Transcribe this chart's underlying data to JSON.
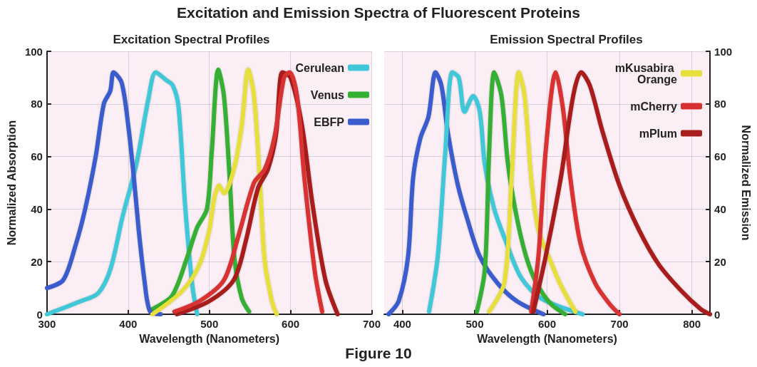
{
  "chart_data": [
    {
      "type": "other",
      "title": "Excitation and Emission Spectra of Fluorescent Proteins",
      "annotations": [
        "Figure 10"
      ]
    },
    {
      "type": "line",
      "title": "Excitation Spectral Profiles",
      "xlabel": "Wavelength (Nanometers)",
      "ylabel": "Normalized Absorption",
      "xlim": [
        300,
        700
      ],
      "xticks": [
        300,
        400,
        500,
        600,
        700
      ],
      "ylim": [
        0,
        100
      ],
      "yticks": [
        0,
        20,
        40,
        60,
        80,
        100
      ],
      "grid": true,
      "legend": "top right",
      "line_style": "solid",
      "series": [
        {
          "name": "Cerulean",
          "color": "#40c8d8",
          "x": [
            300,
            342,
            363,
            378,
            393,
            410,
            425,
            434,
            447,
            455,
            462,
            470,
            479,
            485
          ],
          "values": [
            0,
            5,
            8,
            17,
            37,
            57,
            82,
            92,
            89,
            87,
            79,
            42,
            11,
            0
          ]
        },
        {
          "name": "Venus",
          "color": "#34b034",
          "x": [
            430,
            454,
            472,
            485,
            497,
            503,
            511,
            518,
            525,
            531,
            540,
            549
          ],
          "values": [
            2,
            7,
            21,
            33,
            40,
            62,
            93,
            83,
            52,
            21,
            6,
            1
          ]
        },
        {
          "name": "EBFP",
          "color": "#3a5ccc",
          "x": [
            300,
            320,
            335,
            347,
            360,
            370,
            378,
            382,
            392,
            400,
            407,
            413,
            420,
            427,
            440
          ],
          "values": [
            10,
            13,
            26,
            40,
            60,
            80,
            85,
            92,
            88,
            72,
            52,
            32,
            13,
            1,
            0
          ]
        },
        {
          "color": "#e6df3c",
          "x": [
            430,
            467,
            488,
            500,
            506,
            512,
            518,
            531,
            540,
            548,
            555,
            562,
            568,
            577,
            583
          ],
          "values": [
            0,
            9,
            19,
            32,
            44,
            49,
            46,
            56,
            72,
            93,
            83,
            52,
            21,
            5,
            0
          ]
        },
        {
          "color": "#a81e1e",
          "x": [
            460,
            500,
            530,
            545,
            560,
            572,
            582,
            590,
            600,
            614,
            627,
            643,
            658
          ],
          "values": [
            0,
            5,
            13,
            28,
            48,
            55,
            68,
            92,
            90,
            72,
            42,
            13,
            0
          ]
        },
        {
          "color": "#d83030",
          "x": [
            457,
            488,
            518,
            536,
            555,
            568,
            580,
            592,
            599,
            608,
            617,
            630,
            639
          ],
          "values": [
            1,
            5,
            13,
            30,
            50,
            55,
            67,
            90,
            92,
            83,
            52,
            16,
            1
          ]
        }
      ]
    },
    {
      "type": "line",
      "title": "Emission Spectral Profiles",
      "xlabel": "Wavelength (Nanometers)",
      "y2label": "Normalized Emission",
      "xlim": [
        375,
        825
      ],
      "xticks": [
        400,
        500,
        600,
        700,
        800
      ],
      "y2lim": [
        0,
        100
      ],
      "y2ticks": [
        0,
        20,
        40,
        60,
        80,
        100
      ],
      "grid": true,
      "legend": "top right",
      "line_style": "solid",
      "series": [
        {
          "axis": "y2",
          "color": "#3a5ccc",
          "x": [
            381,
            395,
            408,
            415,
            425,
            436,
            446,
            454,
            463,
            476,
            490,
            507,
            531,
            558,
            595
          ],
          "values": [
            0,
            5,
            22,
            52,
            67,
            75,
            92,
            87,
            69,
            50,
            36,
            22,
            12,
            5,
            0
          ]
        },
        {
          "axis": "y2",
          "color": "#40c8d8",
          "x": [
            437,
            449,
            459,
            469,
            478,
            486,
            498,
            507,
            514,
            527,
            544,
            564,
            592,
            649
          ],
          "values": [
            1,
            22,
            60,
            92,
            90,
            77,
            83,
            77,
            57,
            40,
            27,
            14,
            6,
            0
          ]
        },
        {
          "axis": "y2",
          "color": "#34b034",
          "x": [
            503,
            514,
            520,
            527,
            537,
            546,
            558,
            571,
            585,
            605,
            625
          ],
          "values": [
            1,
            17,
            62,
            92,
            83,
            57,
            37,
            22,
            12,
            4,
            0
          ]
        },
        {
          "axis": "y2",
          "name": "mKusabira Orange",
          "color": "#e6df3c",
          "x": [
            520,
            541,
            551,
            561,
            569,
            578,
            588,
            605,
            619,
            639
          ],
          "values": [
            1,
            12,
            52,
            92,
            83,
            52,
            32,
            20,
            11,
            1
          ]
        },
        {
          "axis": "y2",
          "name": "mCherry",
          "color": "#d83030",
          "x": [
            578,
            588,
            598,
            612,
            622,
            632,
            646,
            666,
            686,
            700
          ],
          "values": [
            1,
            22,
            62,
            92,
            78,
            52,
            27,
            12,
            4,
            0
          ]
        },
        {
          "axis": "y2",
          "name": "mPlum",
          "color": "#a81e1e",
          "x": [
            581,
            598,
            619,
            636,
            647,
            659,
            676,
            700,
            727,
            754,
            785,
            812,
            825
          ],
          "values": [
            1,
            22,
            52,
            83,
            92,
            87,
            70,
            49,
            32,
            19,
            9,
            2,
            0
          ]
        }
      ]
    }
  ]
}
